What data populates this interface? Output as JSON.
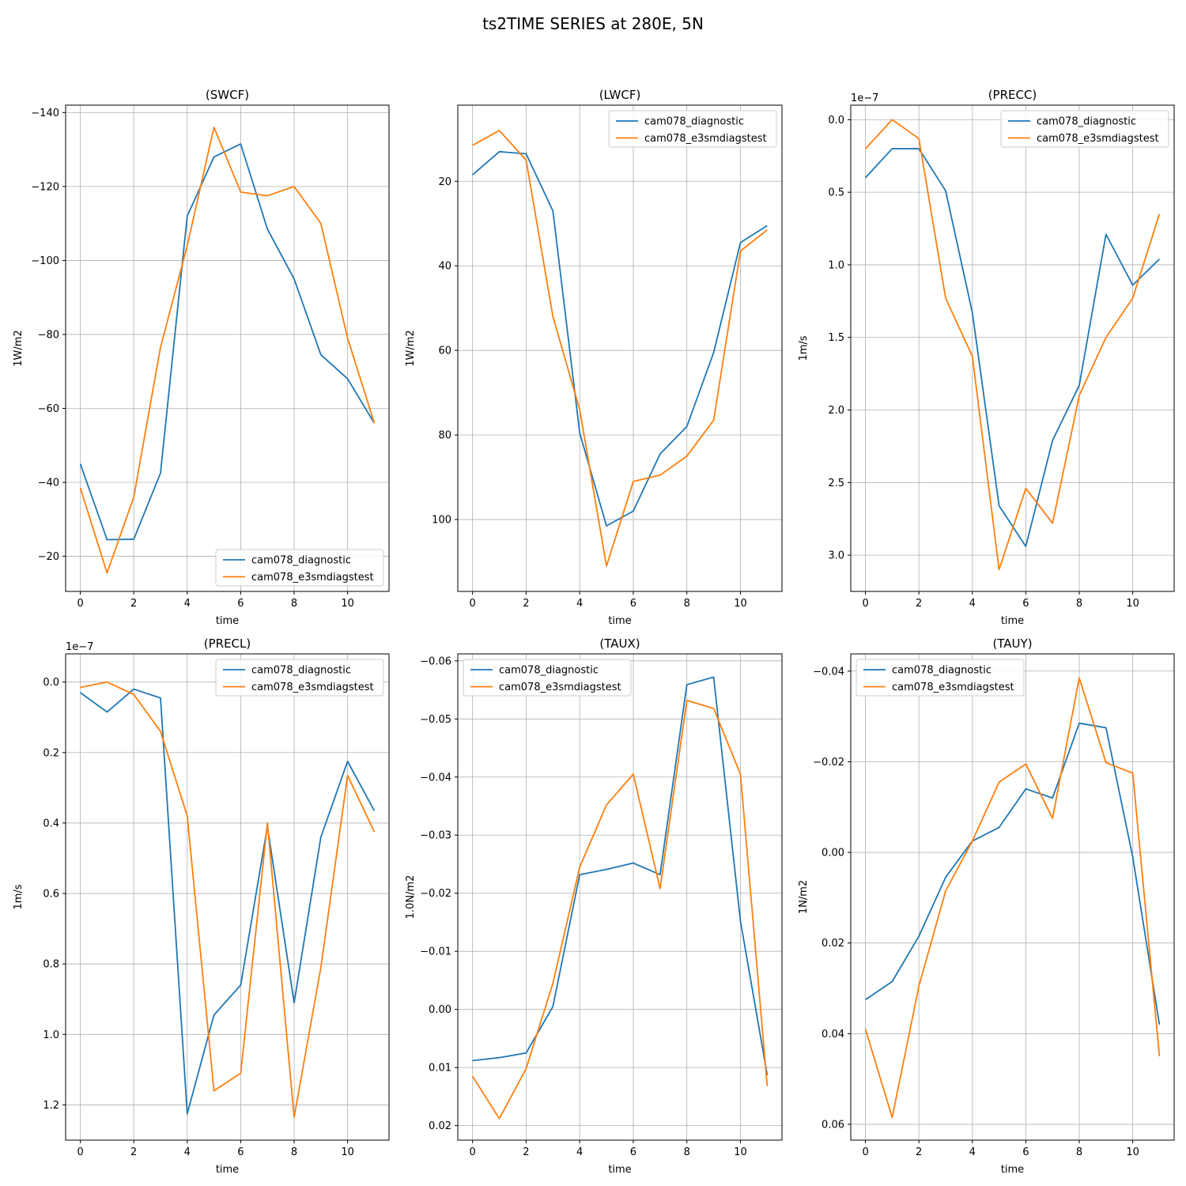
{
  "figure": {
    "title": "ts2TIME SERIES at 280E, 5N"
  },
  "chart_data": [
    {
      "type": "line",
      "title": "(SWCF)",
      "xlabel": "time",
      "ylabel": "1W/m2",
      "xlim": [
        -0.55,
        11.55
      ],
      "ylim": [
        -10.5,
        -142
      ],
      "y_inverted": true,
      "xticks": [
        0,
        2,
        4,
        6,
        8,
        10
      ],
      "yticks": [
        -140,
        -120,
        -100,
        -80,
        -60,
        -40,
        -20
      ],
      "ytick_labels": [
        "−140",
        "−120",
        "−100",
        "−80",
        "−60",
        "−40",
        "−20"
      ],
      "offset_label": "",
      "grid": true,
      "legend": "lower-right",
      "x": [
        0,
        1,
        2,
        3,
        4,
        5,
        6,
        7,
        8,
        9,
        10,
        11
      ],
      "series": [
        {
          "name": "cam078_diagnostic",
          "color": "#1f77b4",
          "values": [
            -45,
            -24.5,
            -24.6,
            -42.5,
            -112,
            -128,
            -131.5,
            -108.5,
            -95,
            -74.5,
            -68,
            -56
          ]
        },
        {
          "name": "cam078_e3smdiagstest",
          "color": "#ff7f0e",
          "values": [
            -38.5,
            -15.5,
            -36,
            -76.5,
            -104,
            -136,
            -118.5,
            -117.5,
            -120,
            -110,
            -79,
            -56
          ]
        }
      ]
    },
    {
      "type": "line",
      "title": "(LWCF)",
      "xlabel": "time",
      "ylabel": "1W/m2",
      "xlim": [
        -0.55,
        11.55
      ],
      "ylim": [
        117,
        2
      ],
      "y_inverted": true,
      "xticks": [
        0,
        2,
        4,
        6,
        8,
        10
      ],
      "yticks": [
        20,
        40,
        60,
        80,
        100
      ],
      "ytick_labels": [
        "20",
        "40",
        "60",
        "80",
        "100"
      ],
      "offset_label": "",
      "grid": true,
      "legend": "upper-right",
      "x": [
        0,
        1,
        2,
        3,
        4,
        5,
        6,
        7,
        8,
        9,
        10,
        11
      ],
      "series": [
        {
          "name": "cam078_diagnostic",
          "color": "#1f77b4",
          "values": [
            18.5,
            13,
            13.5,
            27,
            79.5,
            101.5,
            98,
            84.5,
            78,
            60.5,
            34.5,
            30.5
          ]
        },
        {
          "name": "cam078_e3smdiagstest",
          "color": "#ff7f0e",
          "values": [
            11.5,
            8,
            15,
            52,
            74,
            111,
            91,
            89.5,
            85,
            76.5,
            36.5,
            31.5
          ]
        }
      ]
    },
    {
      "type": "line",
      "title": "(PRECC)",
      "xlabel": "time",
      "ylabel": "1m/s",
      "xlim": [
        -0.55,
        11.55
      ],
      "ylim": [
        3.25,
        -0.1
      ],
      "y_inverted": true,
      "xticks": [
        0,
        2,
        4,
        6,
        8,
        10
      ],
      "yticks": [
        0.0,
        0.5,
        1.0,
        1.5,
        2.0,
        2.5,
        3.0
      ],
      "ytick_labels": [
        "0.0",
        "0.5",
        "1.0",
        "1.5",
        "2.0",
        "2.5",
        "3.0"
      ],
      "offset_label": "1e−7",
      "grid": true,
      "legend": "upper-right",
      "x": [
        0,
        1,
        2,
        3,
        4,
        5,
        6,
        7,
        8,
        9,
        10,
        11
      ],
      "series": [
        {
          "name": "cam078_diagnostic",
          "color": "#1f77b4",
          "values": [
            0.4,
            0.2,
            0.2,
            0.49,
            1.33,
            2.66,
            2.94,
            2.21,
            1.83,
            0.79,
            1.14,
            0.96
          ]
        },
        {
          "name": "cam078_e3smdiagstest",
          "color": "#ff7f0e",
          "values": [
            0.2,
            0.0,
            0.13,
            1.23,
            1.63,
            3.1,
            2.54,
            2.78,
            1.9,
            1.5,
            1.23,
            0.65
          ]
        }
      ]
    },
    {
      "type": "line",
      "title": "(PRECL)",
      "xlabel": "time",
      "ylabel": "1m/s",
      "xlim": [
        -0.55,
        11.55
      ],
      "ylim": [
        1.3,
        -0.08
      ],
      "y_inverted": true,
      "xticks": [
        0,
        2,
        4,
        6,
        8,
        10
      ],
      "yticks": [
        0.0,
        0.2,
        0.4,
        0.6,
        0.8,
        1.0,
        1.2
      ],
      "ytick_labels": [
        "0.0",
        "0.2",
        "0.4",
        "0.6",
        "0.8",
        "1.0",
        "1.2"
      ],
      "offset_label": "1e−7",
      "grid": true,
      "legend": "upper-right",
      "x": [
        0,
        1,
        2,
        3,
        4,
        5,
        6,
        7,
        8,
        9,
        10,
        11
      ],
      "series": [
        {
          "name": "cam078_diagnostic",
          "color": "#1f77b4",
          "values": [
            0.03,
            0.085,
            0.02,
            0.045,
            1.225,
            0.945,
            0.86,
            0.41,
            0.91,
            0.44,
            0.225,
            0.365
          ]
        },
        {
          "name": "cam078_e3smdiagstest",
          "color": "#ff7f0e",
          "values": [
            0.015,
            0.0,
            0.035,
            0.14,
            0.38,
            1.16,
            1.11,
            0.4,
            1.235,
            0.81,
            0.265,
            0.425
          ]
        }
      ]
    },
    {
      "type": "line",
      "title": "(TAUX)",
      "xlabel": "time",
      "ylabel": "1.0N/m2",
      "xlim": [
        -0.55,
        11.55
      ],
      "ylim": [
        0.0225,
        -0.0612
      ],
      "y_inverted": true,
      "xticks": [
        0,
        2,
        4,
        6,
        8,
        10
      ],
      "yticks": [
        -0.06,
        -0.05,
        -0.04,
        -0.03,
        -0.02,
        -0.01,
        0.0,
        0.01,
        0.02
      ],
      "ytick_labels": [
        "−0.06",
        "−0.05",
        "−0.04",
        "−0.03",
        "−0.02",
        "−0.01",
        "0.00",
        "0.01",
        "0.02"
      ],
      "offset_label": "",
      "grid": true,
      "legend": "upper-left",
      "x": [
        0,
        1,
        2,
        3,
        4,
        5,
        6,
        7,
        8,
        9,
        10,
        11
      ],
      "series": [
        {
          "name": "cam078_diagnostic",
          "color": "#1f77b4",
          "values": [
            0.0088,
            0.0083,
            0.0075,
            -0.0005,
            -0.0232,
            -0.0241,
            -0.0252,
            -0.0232,
            -0.0559,
            -0.0572,
            -0.0152,
            0.0113
          ]
        },
        {
          "name": "cam078_e3smdiagstest",
          "color": "#ff7f0e",
          "values": [
            0.0115,
            0.0188,
            0.0102,
            -0.0045,
            -0.0245,
            -0.0352,
            -0.0405,
            -0.0208,
            -0.0532,
            -0.0518,
            -0.0405,
            0.0132
          ]
        }
      ]
    },
    {
      "type": "line",
      "title": "(TAUY)",
      "xlabel": "time",
      "ylabel": "1N/m2",
      "xlim": [
        -0.55,
        11.55
      ],
      "ylim": [
        0.0635,
        -0.0438
      ],
      "y_inverted": true,
      "xticks": [
        0,
        2,
        4,
        6,
        8,
        10
      ],
      "yticks": [
        -0.04,
        -0.02,
        0.0,
        0.02,
        0.04,
        0.06
      ],
      "ytick_labels": [
        "−0.04",
        "−0.02",
        "0.00",
        "0.02",
        "0.04",
        "0.06"
      ],
      "offset_label": "",
      "grid": true,
      "legend": "upper-left",
      "x": [
        0,
        1,
        2,
        3,
        4,
        5,
        6,
        7,
        8,
        9,
        10,
        11
      ],
      "series": [
        {
          "name": "cam078_diagnostic",
          "color": "#1f77b4",
          "values": [
            0.0325,
            0.0285,
            0.0185,
            0.0055,
            -0.0025,
            -0.0055,
            -0.014,
            -0.012,
            -0.0285,
            -0.0275,
            0.001,
            0.038
          ]
        },
        {
          "name": "cam078_e3smdiagstest",
          "color": "#ff7f0e",
          "values": [
            0.039,
            0.0585,
            0.0295,
            0.0085,
            -0.0025,
            -0.0155,
            -0.0195,
            -0.0075,
            -0.0385,
            -0.0198,
            -0.0175,
            0.045
          ]
        }
      ]
    }
  ]
}
